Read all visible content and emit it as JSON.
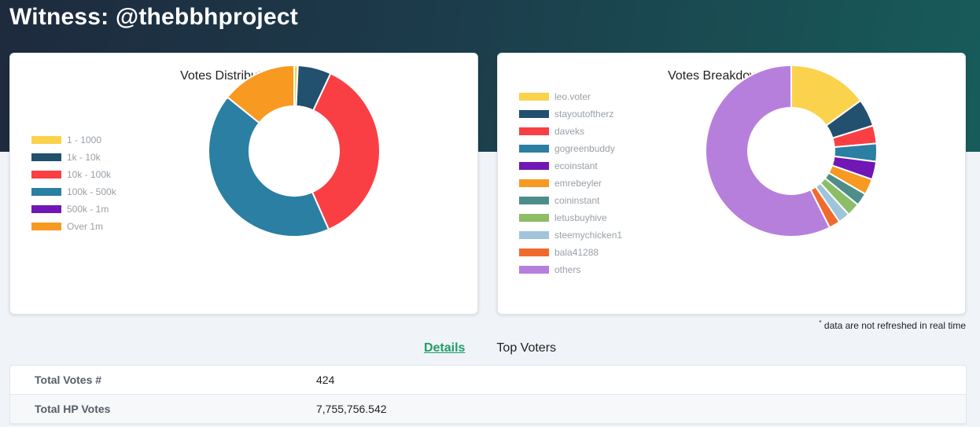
{
  "header": {
    "title": "Witness: @thebbhproject"
  },
  "left_chart": {
    "title": "Votes Distribution (HP)",
    "legend": [
      {
        "label": "1 - 1000",
        "color": "#fbd24b"
      },
      {
        "label": "1k - 10k",
        "color": "#22506f"
      },
      {
        "label": "10k - 100k",
        "color": "#fa3f44"
      },
      {
        "label": "100k - 500k",
        "color": "#2a7fa3"
      },
      {
        "label": "500k - 1m",
        "color": "#7017b5"
      },
      {
        "label": "Over 1m",
        "color": "#f89922"
      }
    ]
  },
  "right_chart": {
    "title": "Votes Breakdown (HP)",
    "legend": [
      {
        "label": "leo.voter",
        "color": "#fbd24b"
      },
      {
        "label": "stayoutoftherz",
        "color": "#22506f"
      },
      {
        "label": "daveks",
        "color": "#fa3f44"
      },
      {
        "label": "gogreenbuddy",
        "color": "#2a7fa3"
      },
      {
        "label": "ecoinstant",
        "color": "#7017b5"
      },
      {
        "label": "emrebeyler",
        "color": "#f89922"
      },
      {
        "label": "coininstant",
        "color": "#4e8e8a"
      },
      {
        "label": "letusbuyhive",
        "color": "#8dbd67"
      },
      {
        "label": "steemychicken1",
        "color": "#9fc4dc"
      },
      {
        "label": "bala41288",
        "color": "#f06a2d"
      },
      {
        "label": "others",
        "color": "#b77fdc"
      }
    ]
  },
  "chart_data": [
    {
      "type": "pie",
      "title": "Votes Distribution (HP)",
      "categories": [
        "1 - 1000",
        "1k - 10k",
        "10k - 100k",
        "100k - 500k",
        "500k - 1m",
        "Over 1m"
      ],
      "values": [
        0.7,
        6.3,
        36.4,
        42.4,
        0,
        14.2
      ],
      "colors": [
        "#fbd24b",
        "#22506f",
        "#fa3f44",
        "#2a7fa3",
        "#7017b5",
        "#f89922"
      ],
      "legend": "left"
    },
    {
      "type": "pie",
      "title": "Votes Breakdown (HP)",
      "categories": [
        "leo.voter",
        "stayoutoftherz",
        "daveks",
        "gogreenbuddy",
        "ecoinstant",
        "emrebeyler",
        "coininstant",
        "letusbuyhive",
        "steemychicken1",
        "bala41288",
        "others"
      ],
      "values": [
        15.0,
        5.2,
        3.4,
        3.4,
        3.4,
        3.0,
        2.4,
        2.5,
        2.2,
        2.1,
        57.4
      ],
      "colors": [
        "#fbd24b",
        "#22506f",
        "#fa3f44",
        "#2a7fa3",
        "#7017b5",
        "#f89922",
        "#4e8e8a",
        "#8dbd67",
        "#9fc4dc",
        "#f06a2d",
        "#b77fdc"
      ],
      "legend": "left"
    }
  ],
  "footnote": {
    "mark": "*",
    "text": "data are not refreshed in real time"
  },
  "tabs": {
    "details": "Details",
    "top_voters": "Top Voters"
  },
  "details": [
    {
      "label": "Total Votes #",
      "value": "424"
    },
    {
      "label": "Total HP Votes",
      "value": "7,755,756.542"
    }
  ]
}
